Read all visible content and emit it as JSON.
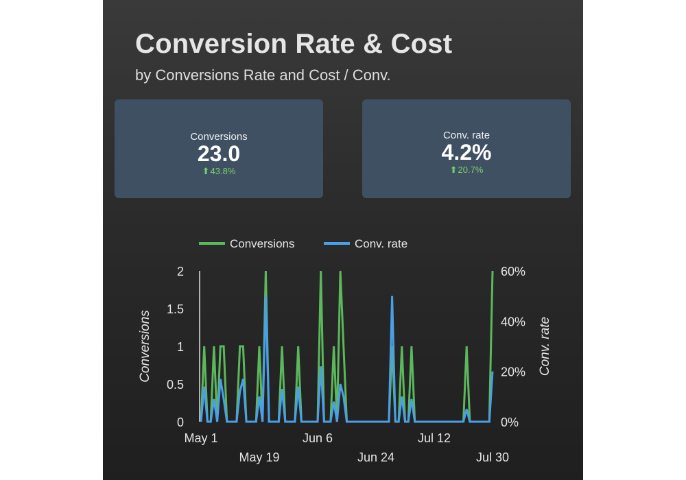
{
  "header": {
    "title": "Conversion Rate & Cost",
    "subtitle": "by Conversions Rate and Cost / Conv."
  },
  "kpis": [
    {
      "label": "Conversions",
      "value": "23.0",
      "delta": "43.8%",
      "trend": "up"
    },
    {
      "label": "Conv. rate",
      "value": "4.2%",
      "delta": "20.7%",
      "trend": "up"
    }
  ],
  "colors": {
    "conversions": "#5cb85c",
    "conv_rate": "#4a9fe8",
    "delta_up": "#7ccf6e",
    "axis_text": "#e6e6e6"
  },
  "chart_data": {
    "type": "line",
    "title": "",
    "x_start": "May 1",
    "x_end": "Jul 30",
    "x_ticks": [
      {
        "label": "May 1",
        "day": 0,
        "row": 0
      },
      {
        "label": "May 19",
        "day": 18,
        "row": 1
      },
      {
        "label": "Jun 6",
        "day": 36,
        "row": 0
      },
      {
        "label": "Jun 24",
        "day": 54,
        "row": 1
      },
      {
        "label": "Jul 12",
        "day": 72,
        "row": 0
      },
      {
        "label": "Jul 30",
        "day": 90,
        "row": 1
      }
    ],
    "ylabel": "Conversions",
    "y2label": "Conv. rate",
    "ylim": [
      0,
      2
    ],
    "y_ticks": [
      {
        "value": 0,
        "label": "0"
      },
      {
        "value": 0.5,
        "label": "0.5"
      },
      {
        "value": 1,
        "label": "1"
      },
      {
        "value": 1.5,
        "label": "1.5"
      },
      {
        "value": 2,
        "label": "2"
      }
    ],
    "y2lim": [
      0,
      60
    ],
    "y2_ticks": [
      {
        "value": 0,
        "label": "0%"
      },
      {
        "value": 20,
        "label": "20%"
      },
      {
        "value": 40,
        "label": "40%"
      },
      {
        "value": 60,
        "label": "60%"
      }
    ],
    "legend": [
      "Conversions",
      "Conv. rate"
    ],
    "legend_position": "top",
    "series": [
      {
        "name": "Conversions",
        "axis": "left",
        "values": [
          0,
          1,
          0,
          0,
          1,
          0,
          1,
          1,
          0,
          0,
          0,
          0,
          1,
          1,
          0,
          0,
          0,
          0,
          1,
          0,
          2,
          0,
          0,
          0,
          0,
          1,
          0,
          0,
          0,
          0,
          1,
          0,
          0,
          0,
          0,
          0,
          0,
          2,
          0,
          0,
          0,
          1,
          0,
          2,
          1,
          0,
          0,
          0,
          0,
          0,
          0,
          0,
          0,
          0,
          0,
          0,
          0,
          0,
          0,
          1,
          0,
          0,
          1,
          0,
          0,
          1,
          0,
          0,
          0,
          0,
          0,
          0,
          0,
          0,
          0,
          0,
          0,
          0,
          0,
          0,
          0,
          0,
          1,
          0,
          0,
          0,
          0,
          0,
          0,
          0,
          2
        ]
      },
      {
        "name": "Conv. rate",
        "axis": "right",
        "values": [
          0,
          14,
          0,
          0,
          9,
          0,
          17,
          9,
          0,
          0,
          0,
          0,
          12,
          17,
          0,
          0,
          0,
          0,
          10,
          0,
          50,
          0,
          0,
          0,
          0,
          13,
          0,
          0,
          0,
          0,
          14,
          0,
          0,
          0,
          0,
          0,
          0,
          22,
          0,
          0,
          0,
          8,
          0,
          15,
          10,
          0,
          0,
          0,
          0,
          0,
          0,
          0,
          0,
          0,
          0,
          0,
          0,
          0,
          0,
          50,
          0,
          0,
          10,
          0,
          0,
          9,
          0,
          0,
          0,
          0,
          0,
          0,
          0,
          0,
          0,
          0,
          0,
          0,
          0,
          0,
          0,
          0,
          5,
          0,
          0,
          0,
          0,
          0,
          0,
          0,
          20
        ]
      }
    ]
  }
}
